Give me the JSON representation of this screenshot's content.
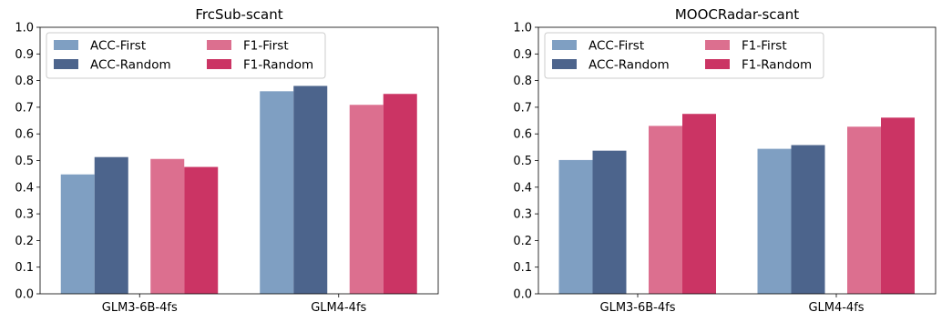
{
  "colors": {
    "acc_first": "#7f9fc2",
    "acc_random": "#4c648c",
    "f1_first": "#dc6f8f",
    "f1_random": "#cb3464"
  },
  "chart_data": [
    {
      "type": "bar",
      "title": "FrcSub-scant",
      "categories": [
        "GLM3-6B-4fs",
        "GLM4-4fs"
      ],
      "ylim": [
        0,
        1.0
      ],
      "yticks": [
        "0.0",
        "0.1",
        "0.2",
        "0.3",
        "0.4",
        "0.5",
        "0.6",
        "0.7",
        "0.8",
        "0.9",
        "1.0"
      ],
      "grid": false,
      "legend_placement": "top-left",
      "series": [
        {
          "name": "ACC-First",
          "color_key": "acc_first",
          "values": [
            0.448,
            0.76
          ]
        },
        {
          "name": "ACC-Random",
          "color_key": "acc_random",
          "values": [
            0.513,
            0.78
          ]
        },
        {
          "name": "F1-First",
          "color_key": "f1_first",
          "values": [
            0.506,
            0.709
          ]
        },
        {
          "name": "F1-Random",
          "color_key": "f1_random",
          "values": [
            0.476,
            0.75
          ]
        }
      ]
    },
    {
      "type": "bar",
      "title": "MOOCRadar-scant",
      "categories": [
        "GLM3-6B-4fs",
        "GLM4-4fs"
      ],
      "ylim": [
        0,
        1.0
      ],
      "yticks": [
        "0.0",
        "0.1",
        "0.2",
        "0.3",
        "0.4",
        "0.5",
        "0.6",
        "0.7",
        "0.8",
        "0.9",
        "1.0"
      ],
      "grid": false,
      "legend_placement": "top-left",
      "series": [
        {
          "name": "ACC-First",
          "color_key": "acc_first",
          "values": [
            0.502,
            0.544
          ]
        },
        {
          "name": "ACC-Random",
          "color_key": "acc_random",
          "values": [
            0.537,
            0.558
          ]
        },
        {
          "name": "F1-First",
          "color_key": "f1_first",
          "values": [
            0.63,
            0.627
          ]
        },
        {
          "name": "F1-Random",
          "color_key": "f1_random",
          "values": [
            0.675,
            0.661
          ]
        }
      ]
    }
  ]
}
